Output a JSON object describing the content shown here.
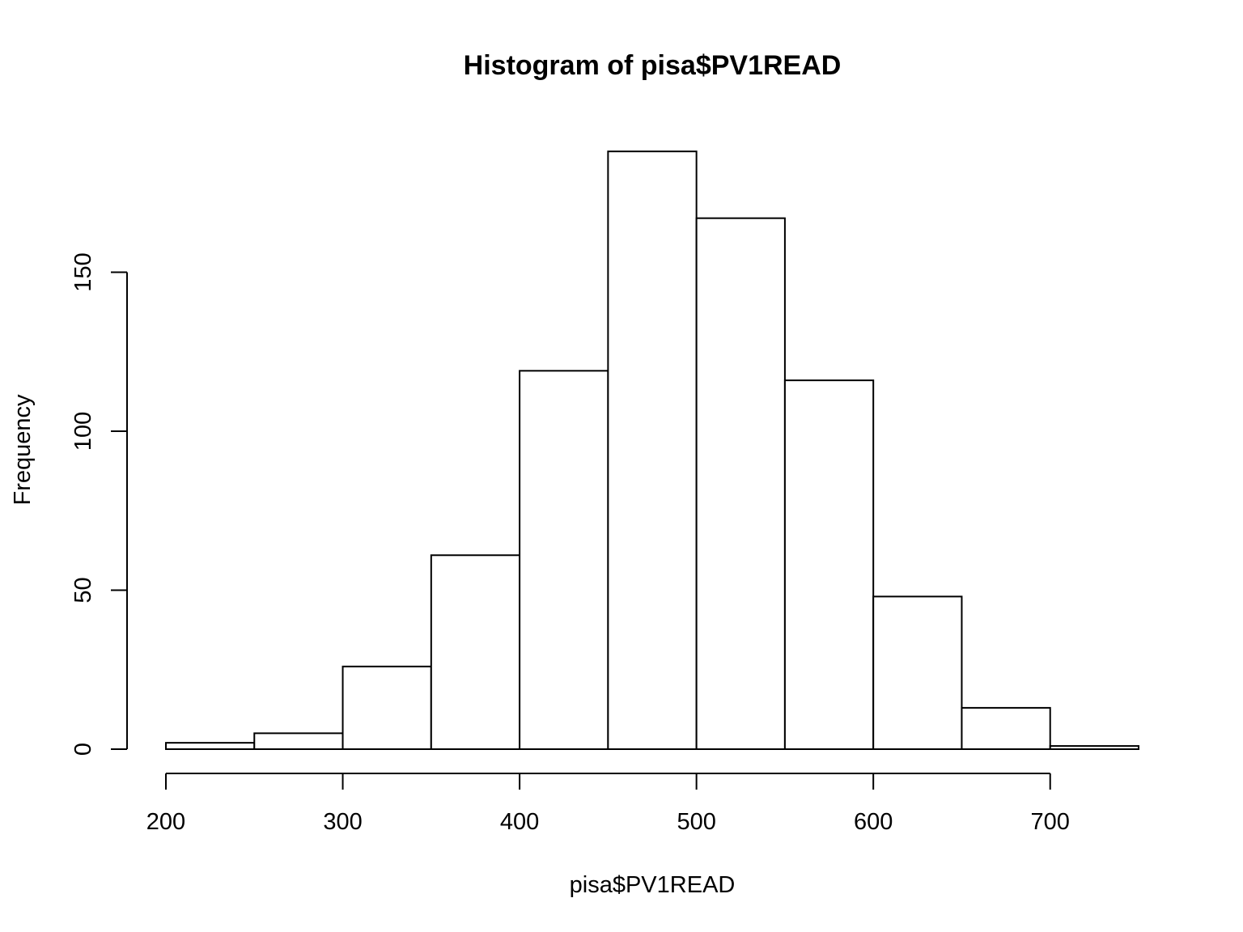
{
  "chart_data": {
    "type": "bar",
    "title": "Histogram of pisa$PV1READ",
    "xlabel": "pisa$PV1READ",
    "ylabel": "Frequency",
    "bins": [
      {
        "start": 200,
        "end": 250,
        "count": 2
      },
      {
        "start": 250,
        "end": 300,
        "count": 5
      },
      {
        "start": 300,
        "end": 350,
        "count": 26
      },
      {
        "start": 350,
        "end": 400,
        "count": 61
      },
      {
        "start": 400,
        "end": 450,
        "count": 119
      },
      {
        "start": 450,
        "end": 500,
        "count": 188
      },
      {
        "start": 500,
        "end": 550,
        "count": 167
      },
      {
        "start": 550,
        "end": 600,
        "count": 116
      },
      {
        "start": 600,
        "end": 650,
        "count": 48
      },
      {
        "start": 650,
        "end": 700,
        "count": 13
      },
      {
        "start": 700,
        "end": 750,
        "count": 1
      }
    ],
    "xlim": [
      200,
      750
    ],
    "ylim": [
      0,
      188
    ],
    "x_ticks": [
      200,
      300,
      400,
      500,
      600,
      700
    ],
    "y_ticks": [
      0,
      50,
      100,
      150
    ],
    "grid": false,
    "colors": {
      "bar_fill": "#ffffff",
      "bar_stroke": "#000000"
    }
  }
}
